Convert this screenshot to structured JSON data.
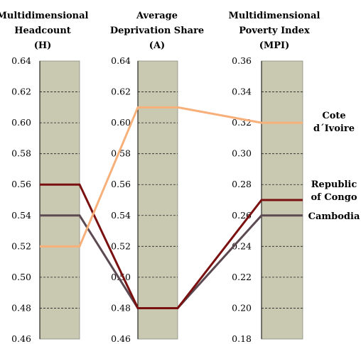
{
  "chart_data": {
    "type": "line",
    "panels": [
      {
        "title_lines": [
          "Multidimensional",
          "Headcount",
          "(H)"
        ],
        "ticks": [
          "0.64",
          "0.62",
          "0.60",
          "0.58",
          "0.56",
          "0.54",
          "0.52",
          "0.50",
          "0.48",
          "0.46"
        ],
        "ylim": [
          0.46,
          0.64
        ]
      },
      {
        "title_lines": [
          "Average",
          "Deprivation Share",
          "(A)"
        ],
        "ticks": [
          "0.64",
          "0.62",
          "0.60",
          "0.58",
          "0.56",
          "0.54",
          "0.52",
          "0.50",
          "0.48",
          "0.46"
        ],
        "ylim": [
          0.46,
          0.64
        ]
      },
      {
        "title_lines": [
          "Multidimensional",
          "Poverty Index",
          "(MPI)"
        ],
        "ticks": [
          "0.36",
          "0.34",
          "0.32",
          "0.30",
          "0.28",
          "0.26",
          "0.24",
          "0.22",
          "0.20",
          "0.18"
        ],
        "ylim": [
          0.18,
          0.36
        ]
      }
    ],
    "series": [
      {
        "name": "Cote d´Ivoire",
        "label_lines": [
          "Cote",
          "d´Ivoire"
        ],
        "color": "#f8b07a",
        "values": [
          0.52,
          0.61,
          0.32
        ]
      },
      {
        "name": "Republic of Congo",
        "label_lines": [
          "Republic",
          "of Congo"
        ],
        "color": "#7a1010",
        "values": [
          0.56,
          0.48,
          0.27
        ]
      },
      {
        "name": "Cambodia",
        "label_lines": [
          "Cambodia"
        ],
        "color": "#5c4a52",
        "values": [
          0.54,
          0.48,
          0.26
        ]
      }
    ],
    "grid": true
  }
}
